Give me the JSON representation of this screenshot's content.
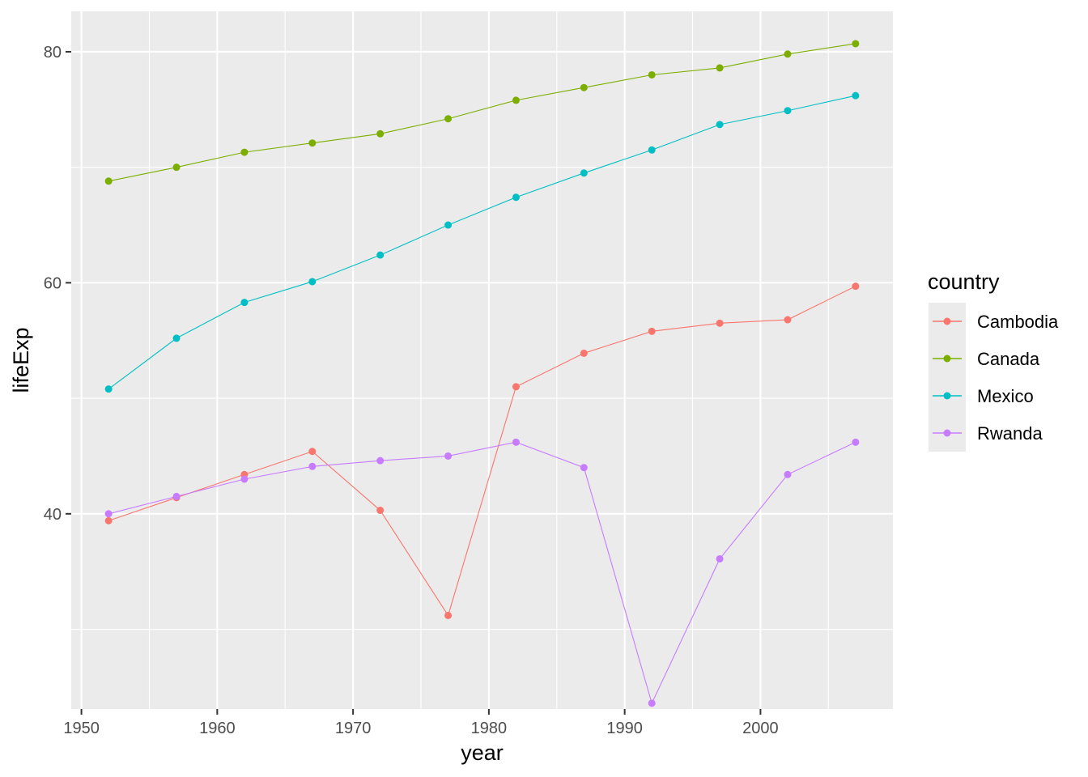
{
  "chart_data": {
    "type": "line",
    "title": "",
    "xlabel": "year",
    "ylabel": "lifeExp",
    "xlim": [
      1949.25,
      2009.75
    ],
    "ylim": [
      23.1,
      83.5
    ],
    "x_ticks": [
      "1950",
      "1960",
      "1970",
      "1980",
      "1990",
      "2000"
    ],
    "y_ticks": [
      "40",
      "60",
      "80"
    ],
    "grid": true,
    "legend_title": "country",
    "legend_position": "right",
    "x": [
      1952,
      1957,
      1962,
      1967,
      1972,
      1977,
      1982,
      1987,
      1992,
      1997,
      2002,
      2007
    ],
    "series": [
      {
        "name": "Cambodia",
        "color": "#F8766D",
        "values": [
          39.4,
          41.4,
          43.4,
          45.4,
          40.3,
          31.2,
          51.0,
          53.9,
          55.8,
          56.5,
          56.8,
          59.7
        ]
      },
      {
        "name": "Canada",
        "color": "#7CAE00",
        "values": [
          68.8,
          70.0,
          71.3,
          72.1,
          72.9,
          74.2,
          75.8,
          76.9,
          78.0,
          78.6,
          79.8,
          80.7
        ]
      },
      {
        "name": "Mexico",
        "color": "#00BFC4",
        "values": [
          50.8,
          55.2,
          58.3,
          60.1,
          62.4,
          65.0,
          67.4,
          69.5,
          71.5,
          73.7,
          74.9,
          76.2
        ]
      },
      {
        "name": "Rwanda",
        "color": "#C77CFF",
        "values": [
          40.0,
          41.5,
          43.0,
          44.1,
          44.6,
          45.0,
          46.2,
          44.0,
          23.6,
          36.1,
          43.4,
          46.2
        ]
      }
    ]
  }
}
